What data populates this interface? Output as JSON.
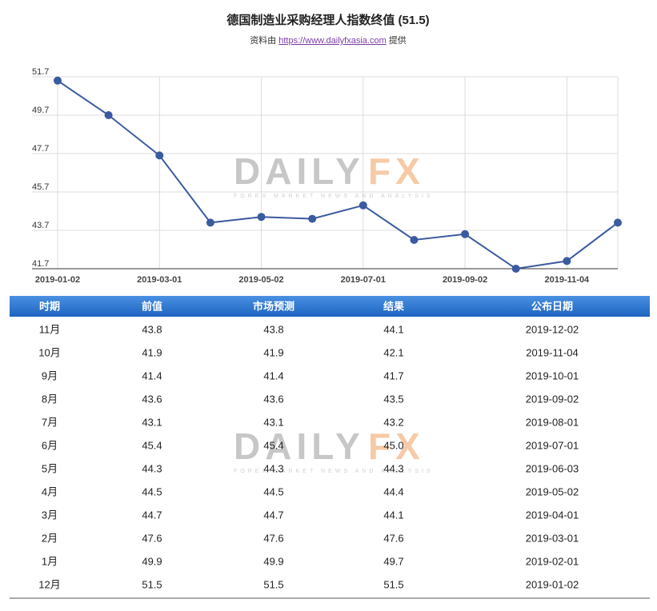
{
  "chart_data": {
    "type": "line",
    "title": "德国制造业采购经理人指数终值 (51.5)",
    "source_prefix": "资料由",
    "source_link": "https://www.dailyfxasia.com",
    "source_suffix": "提供",
    "categories": [
      "2019-01-02",
      null,
      "2019-03-01",
      null,
      "2019-05-02",
      null,
      "2019-07-01",
      null,
      "2019-09-02",
      null,
      "2019-11-04",
      null
    ],
    "series": [
      {
        "color": "#3b5aa0",
        "values": [
          51.5,
          49.7,
          47.6,
          44.1,
          44.4,
          44.3,
          45.0,
          43.2,
          43.5,
          41.7,
          42.1,
          44.1
        ]
      }
    ],
    "ylim": [
      41.7,
      51.7
    ],
    "yticks": [
      41.7,
      43.7,
      45.7,
      47.7,
      49.7,
      51.7
    ],
    "grid": true
  },
  "watermark": {
    "brand_left": "DAILY",
    "brand_right": "FX",
    "tagline": "FOREX MARKET NEWS AND ANALYSIS"
  },
  "table": {
    "headers": [
      "时期",
      "前值",
      "市场预测",
      "结果",
      "公布日期"
    ],
    "rows": [
      [
        "11月",
        "43.8",
        "43.8",
        "44.1",
        "2019-12-02"
      ],
      [
        "10月",
        "41.9",
        "41.9",
        "42.1",
        "2019-11-04"
      ],
      [
        "9月",
        "41.4",
        "41.4",
        "41.7",
        "2019-10-01"
      ],
      [
        "8月",
        "43.6",
        "43.6",
        "43.5",
        "2019-09-02"
      ],
      [
        "7月",
        "43.1",
        "43.1",
        "43.2",
        "2019-08-01"
      ],
      [
        "6月",
        "45.4",
        "45.4",
        "45.0",
        "2019-07-01"
      ],
      [
        "5月",
        "44.3",
        "44.3",
        "44.3",
        "2019-06-03"
      ],
      [
        "4月",
        "44.5",
        "44.5",
        "44.4",
        "2019-05-02"
      ],
      [
        "3月",
        "44.7",
        "44.7",
        "44.1",
        "2019-04-01"
      ],
      [
        "2月",
        "47.6",
        "47.6",
        "47.6",
        "2019-03-01"
      ],
      [
        "1月",
        "49.9",
        "49.9",
        "49.7",
        "2019-02-01"
      ],
      [
        "12月",
        "51.5",
        "51.5",
        "51.5",
        "2019-01-02"
      ]
    ]
  }
}
